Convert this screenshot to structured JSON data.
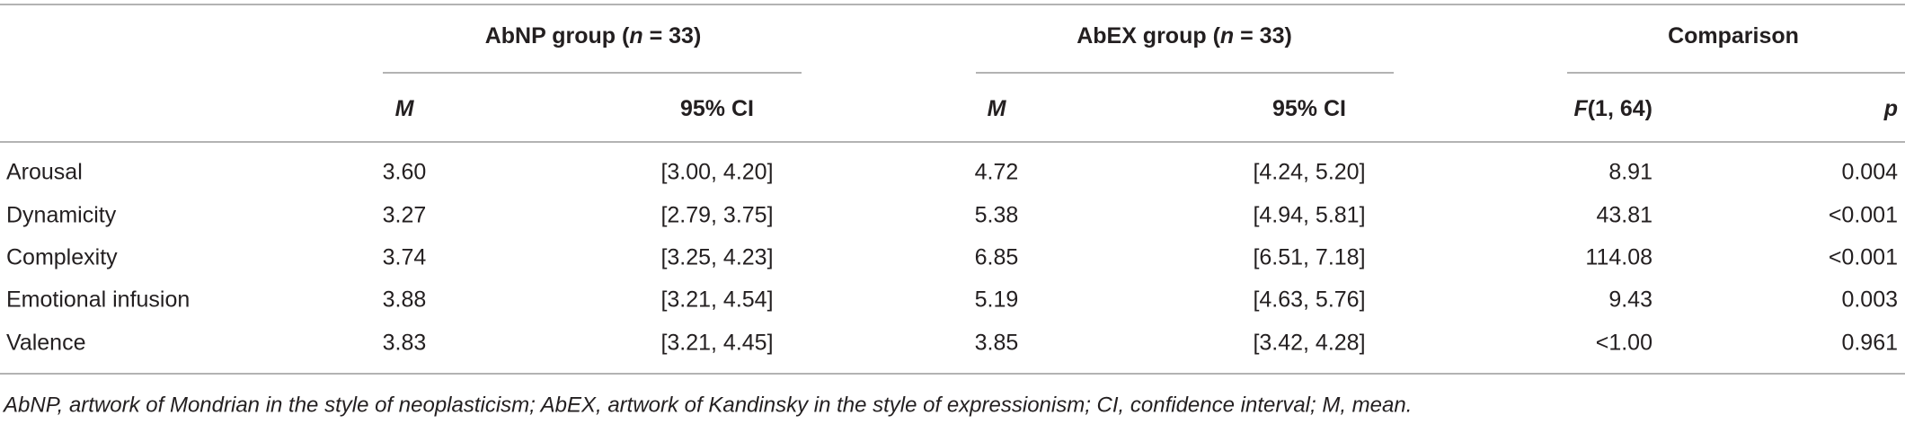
{
  "table": {
    "groups": [
      [
        "AbNP group (",
        "n",
        " = 33)"
      ],
      [
        "AbEX group (",
        "n",
        " = 33)"
      ],
      [
        "Comparison"
      ]
    ],
    "columns": [
      [
        "M"
      ],
      [
        "95% CI"
      ],
      [
        "M"
      ],
      [
        "95% CI"
      ],
      [
        "F",
        "(1, 64)"
      ],
      [
        "p"
      ]
    ],
    "rows": [
      [
        "Arousal",
        "3.60",
        "[3.00, 4.20]",
        "4.72",
        "[4.24, 5.20]",
        "8.91",
        "0.004"
      ],
      [
        "Dynamicity",
        "3.27",
        "[2.79, 3.75]",
        "5.38",
        "[4.94, 5.81]",
        "43.81",
        "<0.001"
      ],
      [
        "Complexity",
        "3.74",
        "[3.25, 4.23]",
        "6.85",
        "[6.51, 7.18]",
        "114.08",
        "<0.001"
      ],
      [
        "Emotional infusion",
        "3.88",
        "[3.21, 4.54]",
        "5.19",
        "[4.63, 5.76]",
        "9.43",
        "0.003"
      ],
      [
        "Valence",
        "3.83",
        "[3.21, 4.45]",
        "3.85",
        "[3.42, 4.28]",
        "<1.00",
        "0.961"
      ]
    ],
    "footnote": "AbNP, artwork of Mondrian in the style of neoplasticism; AbEX, artwork of Kandinsky in the style of expressionism; CI, confidence interval; M, mean."
  }
}
